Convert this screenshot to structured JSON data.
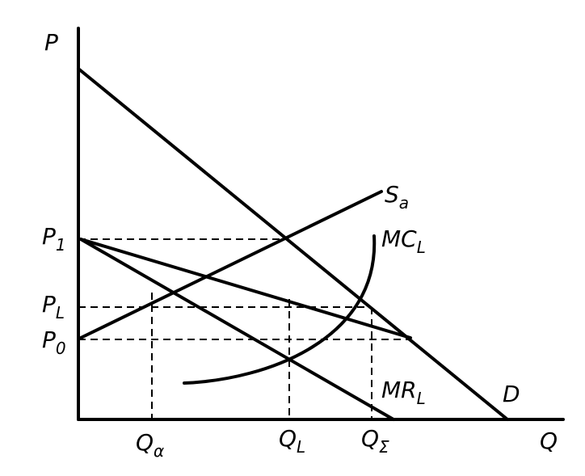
{
  "axes": {
    "y": {
      "main": "P"
    },
    "x": {
      "main": "Q"
    }
  },
  "price_labels": [
    {
      "main": "P",
      "sub": "1"
    },
    {
      "main": "P",
      "sub": "L"
    },
    {
      "main": "P",
      "sub": "0"
    }
  ],
  "quantity_labels": [
    {
      "main": "Q",
      "sub": "α"
    },
    {
      "main": "Q",
      "sub": "L"
    },
    {
      "main": "Q",
      "sub": "Σ"
    }
  ],
  "curves": [
    {
      "main": "S",
      "sub": "a"
    },
    {
      "main": "MC",
      "sub": "L"
    },
    {
      "main": "MR",
      "sub": "L"
    },
    {
      "main": "D"
    }
  ]
}
